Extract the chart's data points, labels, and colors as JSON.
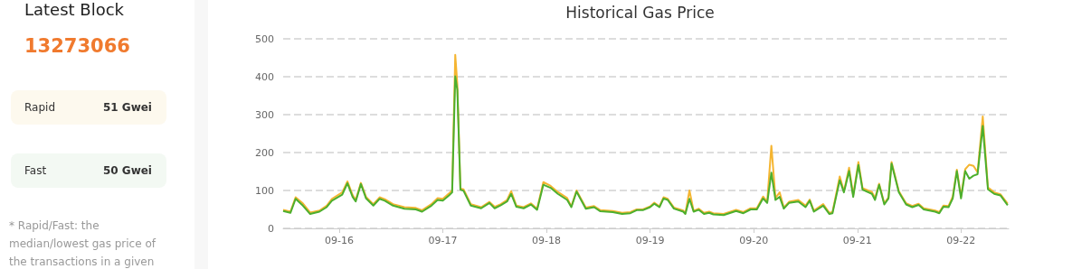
{
  "chart_data": [
    {
      "type": "other",
      "title": "Latest Block",
      "subtitle": "13273066",
      "annotations": [
        "Rapid",
        "51 Gwei",
        "Fast",
        "50 Gwei",
        "* Rapid/Fast: the median/lowest gas price of the transactions in a given"
      ]
    },
    {
      "type": "line",
      "title": "Historical Gas Price",
      "grid": "y",
      "x": [
        "--09-15T11:02",
        "--09-15T12:43",
        "--09-15T13:55",
        "--09-15T15:36",
        "--09-15T17:17",
        "--09-15T19:26",
        "--09-15T21:07",
        "--09-15T22:19",
        "--09-16T00:43",
        "--09-16T01:55",
        "--09-16T03:07",
        "--09-16T03:50",
        "--09-16T05:02",
        "--09-16T06:14",
        "--09-16T07:55",
        "--09-16T09:22",
        "--09-16T10:34",
        "--09-16T12:29",
        "--09-16T15:07",
        "--09-16T17:46",
        "--09-16T19:12",
        "--09-16T21:22",
        "--09-16T22:48",
        "--09-17T00:00",
        "--09-17T01:26",
        "--09-17T02:10",
        "--09-17T02:53",
        "--09-17T03:22",
        "--09-17T04:05",
        "--09-17T04:48",
        "--09-17T06:29",
        "--09-17T08:53",
        "--09-17T10:48",
        "--09-17T12:00",
        "--09-17T13:26",
        "--09-17T14:53",
        "--09-17T15:50",
        "--09-17T17:02",
        "--09-17T18:43",
        "--09-17T20:24",
        "--09-17T21:50",
        "--09-17T23:17",
        "--09-18T00:58",
        "--09-18T02:38",
        "--09-18T04:48",
        "--09-18T05:46",
        "--09-18T06:58",
        "--09-18T09:07",
        "--09-18T11:02",
        "--09-18T12:29",
        "--09-18T15:22",
        "--09-18T17:31",
        "--09-18T19:26",
        "--09-18T20:53",
        "--09-18T22:19",
        "--09-19T00:00",
        "--09-19T00:58",
        "--09-19T02:10",
        "--09-19T03:07",
        "--09-19T04:05",
        "--09-19T05:31",
        "--09-19T07:41",
        "--09-19T08:10",
        "--09-19T09:07",
        "--09-19T10:05",
        "--09-19T11:17",
        "--09-19T12:29",
        "--09-19T13:41",
        "--09-19T14:38",
        "--09-19T17:02",
        "--09-19T19:55",
        "--09-19T21:36",
        "--09-19T23:17",
        "--09-20T00:43",
        "--09-20T02:10",
        "--09-20T03:07",
        "--09-20T04:05",
        "--09-20T05:02",
        "--09-20T06:00",
        "--09-20T06:58",
        "--09-20T08:10",
        "--09-20T10:19",
        "--09-20T12:00",
        "--09-20T12:58",
        "--09-20T13:55",
        "--09-20T16:05",
        "--09-20T17:31",
        "--09-20T18:14",
        "--09-20T19:55",
        "--09-20T20:53",
        "--09-20T22:05",
        "--09-20T23:02",
        "--09-21T00:14",
        "--09-21T01:12",
        "--09-21T03:22",
        "--09-21T04:05",
        "--09-21T05:02",
        "--09-21T06:14",
        "--09-21T07:12",
        "--09-21T07:55",
        "--09-21T09:36",
        "--09-21T11:17",
        "--09-21T12:43",
        "--09-21T14:10",
        "--09-21T15:22",
        "--09-21T18:00",
        "--09-21T18:58",
        "--09-21T19:55",
        "--09-21T21:07",
        "--09-21T22:05",
        "--09-21T23:02",
        "--09-22T00:00",
        "--09-22T00:58",
        "--09-22T01:55",
        "--09-22T02:53",
        "--09-22T03:50",
        "--09-22T05:02",
        "--09-22T06:14",
        "--09-22T07:41",
        "--09-22T09:07",
        "--09-22T10:48"
      ],
      "series": [
        {
          "color": "#f5b531",
          "values": [
            49,
            44,
            82,
            66,
            42,
            47,
            60,
            78,
            95,
            124,
            88,
            75,
            120,
            83,
            64,
            82,
            77,
            64,
            56,
            54,
            48,
            64,
            80,
            78,
            92,
            100,
            458,
            380,
            105,
            103,
            64,
            56,
            70,
            57,
            64,
            75,
            98,
            60,
            56,
            66,
            52,
            122,
            112,
            96,
            80,
            58,
            100,
            55,
            59,
            48,
            46,
            41,
            43,
            50,
            50,
            58,
            68,
            58,
            82,
            78,
            55,
            47,
            40,
            100,
            46,
            52,
            41,
            44,
            40,
            38,
            49,
            43,
            53,
            53,
            84,
            70,
            218,
            80,
            95,
            55,
            70,
            75,
            60,
            76,
            47,
            64,
            41,
            43,
            137,
            98,
            160,
            88,
            175,
            106,
            96,
            80,
            118,
            66,
            82,
            175,
            98,
            66,
            59,
            65,
            53,
            47,
            43,
            60,
            59,
            84,
            155,
            84,
            156,
            168,
            165,
            148,
            295,
            108,
            95,
            90,
            65
          ]
        },
        {
          "color": "#4caf2e",
          "values": [
            46,
            41,
            78,
            60,
            38,
            44,
            56,
            73,
            89,
            119,
            83,
            71,
            117,
            79,
            60,
            78,
            73,
            60,
            52,
            50,
            44,
            60,
            75,
            73,
            87,
            95,
            401,
            365,
            102,
            99,
            60,
            53,
            67,
            53,
            61,
            71,
            91,
            57,
            53,
            63,
            49,
            115,
            107,
            91,
            75,
            56,
            97,
            52,
            56,
            45,
            43,
            38,
            40,
            48,
            48,
            56,
            65,
            56,
            79,
            75,
            52,
            44,
            38,
            78,
            44,
            49,
            38,
            41,
            37,
            35,
            46,
            40,
            50,
            50,
            79,
            67,
            147,
            75,
            83,
            52,
            67,
            71,
            56,
            73,
            44,
            60,
            38,
            40,
            127,
            95,
            151,
            83,
            167,
            102,
            91,
            75,
            115,
            63,
            79,
            171,
            95,
            63,
            56,
            62,
            50,
            44,
            40,
            57,
            56,
            79,
            151,
            79,
            151,
            131,
            139,
            143,
            270,
            103,
            91,
            87,
            61
          ]
        }
      ],
      "xlim": [
        "--09-15T11:02",
        "--09-22T11:02"
      ],
      "xticks": [
        {
          "value": "--09-16",
          "label": "09-16"
        },
        {
          "value": "--09-17",
          "label": "09-17"
        },
        {
          "value": "--09-18",
          "label": "09-18"
        },
        {
          "value": "--09-19",
          "label": "09-19"
        },
        {
          "value": "--09-20",
          "label": "09-20"
        },
        {
          "value": "--09-21",
          "label": "09-21"
        },
        {
          "value": "--09-22",
          "label": "09-22"
        }
      ],
      "ylim": [
        0,
        500
      ],
      "yticks": [
        0,
        100,
        200,
        300,
        400,
        500
      ]
    }
  ]
}
